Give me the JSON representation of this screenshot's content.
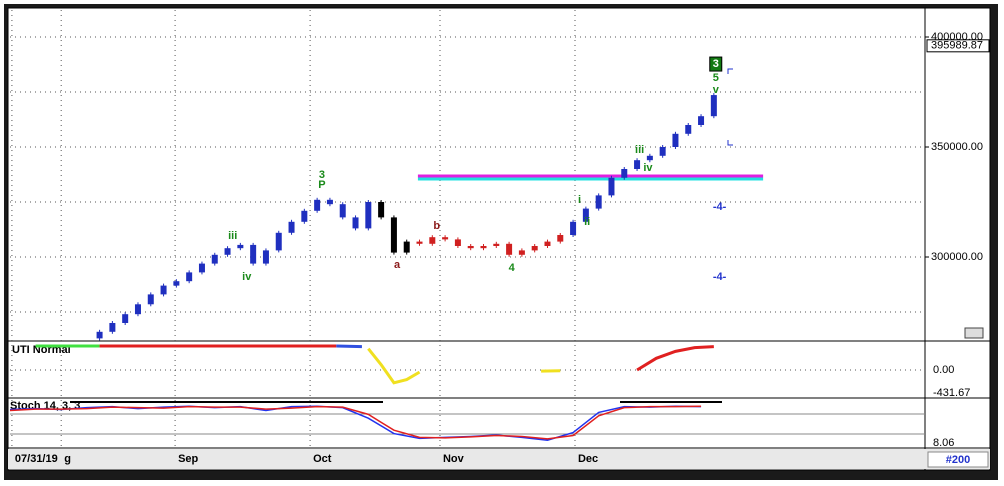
{
  "chart_data": [
    {
      "type": "candlestick",
      "x": [
        14,
        16,
        18,
        20,
        22,
        24,
        26,
        28,
        30,
        32,
        34,
        36,
        38,
        40,
        42,
        44,
        46,
        48,
        50,
        52,
        54,
        56,
        58,
        60,
        62,
        64,
        66,
        68,
        70,
        72,
        74,
        76,
        78,
        80,
        82,
        84,
        86,
        88,
        90,
        92,
        94,
        96,
        98,
        100,
        102,
        104,
        106,
        108,
        110
      ],
      "open": [
        263000,
        266000,
        270000,
        274000,
        278500,
        283000,
        287000,
        289000,
        293000,
        297000,
        301000,
        304000,
        305500,
        297000,
        303000,
        311000,
        316000,
        321000,
        326000,
        324000,
        318000,
        313000,
        325000,
        318000,
        302000,
        307000,
        306000,
        309000,
        308000,
        305000,
        304000,
        305000,
        306000,
        301000,
        303000,
        305000,
        307000,
        310000,
        316000,
        322000,
        328000,
        336000,
        340000,
        344000,
        346000,
        350000,
        356000,
        360000,
        364000
      ],
      "close": [
        266000,
        270000,
        274000,
        278500,
        283000,
        287000,
        289000,
        293000,
        297000,
        301000,
        304000,
        305500,
        297000,
        303000,
        311000,
        316000,
        321000,
        326000,
        324000,
        318000,
        313000,
        325000,
        318000,
        302000,
        307000,
        306000,
        309000,
        308000,
        305000,
        304000,
        305000,
        306000,
        301000,
        303000,
        305000,
        307000,
        310000,
        316000,
        322000,
        328000,
        336000,
        340000,
        344000,
        346000,
        350000,
        356000,
        360000,
        364000,
        373600
      ],
      "colors": [
        "#1f2fbf",
        "#1f2fbf",
        "#1f2fbf",
        "#1f2fbf",
        "#1f2fbf",
        "#1f2fbf",
        "#1f2fbf",
        "#1f2fbf",
        "#1f2fbf",
        "#1f2fbf",
        "#1f2fbf",
        "#1f2fbf",
        "#1f2fbf",
        "#1f2fbf",
        "#1f2fbf",
        "#1f2fbf",
        "#1f2fbf",
        "#1f2fbf",
        "#1f2fbf",
        "#1f2fbf",
        "#1f2fbf",
        "#1f2fbf",
        "#000000",
        "#000000",
        "#000000",
        "#d02020",
        "#d02020",
        "#d02020",
        "#d02020",
        "#d02020",
        "#d02020",
        "#d02020",
        "#d02020",
        "#d02020",
        "#d02020",
        "#d02020",
        "#d02020",
        "#1f2fbf",
        "#1f2fbf",
        "#1f2fbf",
        "#1f2fbf",
        "#1f2fbf",
        "#1f2fbf",
        "#1f2fbf",
        "#1f2fbf",
        "#1f2fbf",
        "#1f2fbf",
        "#1f2fbf",
        "#1f2fbf"
      ],
      "xlim": [
        0,
        143
      ],
      "xticks": [
        {
          "value": 0.3,
          "label": "07/31/19"
        },
        {
          "value": 8,
          "label": "g"
        },
        {
          "value": 25.8,
          "label": "Sep"
        },
        {
          "value": 46.9,
          "label": "Oct"
        },
        {
          "value": 67.2,
          "label": "Nov"
        },
        {
          "value": 88.3,
          "label": "Dec"
        }
      ],
      "ylim": [
        262270,
        412270
      ],
      "yticks": [
        {
          "value": 300000,
          "label": "300000.00"
        },
        {
          "value": 350000,
          "label": "350000.00"
        },
        {
          "value": 400000,
          "label": "400000.00"
        }
      ],
      "minor_yticks": [
        275000,
        325000,
        375000
      ],
      "last_price": {
        "value": 395989.87,
        "label": "395989.87"
      },
      "levels": [
        {
          "value": 336800,
          "color": "#e020e0"
        },
        {
          "value": 335450,
          "color": "#20e0e0"
        }
      ],
      "level_x": [
        63.75,
        117.7
      ],
      "annotations": [
        {
          "text": "3",
          "x": 48.75,
          "y": 337300,
          "color": "#1a8a1a"
        },
        {
          "text": "P",
          "x": 48.75,
          "y": 332700,
          "color": "#1a8a1a"
        },
        {
          "text": "iii",
          "x": 34.8,
          "y": 309500,
          "color": "#1a8a1a"
        },
        {
          "text": "iv",
          "x": 37,
          "y": 290900,
          "color": "#1a8a1a"
        },
        {
          "text": "a",
          "x": 60.5,
          "y": 296400,
          "color": "#8b1a1a"
        },
        {
          "text": "b",
          "x": 66.7,
          "y": 314100,
          "color": "#8b1a1a"
        },
        {
          "text": "4",
          "x": 78.4,
          "y": 295000,
          "color": "#1a8a1a"
        },
        {
          "text": "i",
          "x": 89,
          "y": 325900,
          "color": "#1a8a1a"
        },
        {
          "text": "ii",
          "x": 90.2,
          "y": 315900,
          "color": "#1a8a1a"
        },
        {
          "text": "iii",
          "x": 98.4,
          "y": 348600,
          "color": "#1a8a1a"
        },
        {
          "text": "iv",
          "x": 99.7,
          "y": 340500,
          "color": "#1a8a1a"
        },
        {
          "text": "5",
          "x": 110.3,
          "y": 381400,
          "color": "#1a8a1a"
        },
        {
          "text": "v",
          "x": 110.3,
          "y": 375900,
          "color": "#1a8a1a"
        },
        {
          "text": "3",
          "x": 110.3,
          "y": 387700,
          "color": "#ffffff",
          "boxed": true
        },
        {
          "text": "-4-",
          "x": 110.9,
          "y": 322700,
          "color": "#2233cc"
        },
        {
          "text": "-4-",
          "x": 110.9,
          "y": 290900,
          "color": "#2233cc"
        }
      ]
    },
    {
      "type": "segments",
      "title": "UTI Normal",
      "xlim": [
        0,
        143
      ],
      "ylim": [
        -507,
        507
      ],
      "yticks": [
        {
          "value": 0,
          "label": "0.00"
        }
      ],
      "value_label": {
        "value": -431.67,
        "label": "-431.67"
      },
      "segments": [
        {
          "color": "#40e040",
          "x": [
            4,
            14
          ],
          "values": [
            450,
            450
          ]
        },
        {
          "color": "#e02020",
          "x": [
            14,
            51
          ],
          "values": [
            450,
            450
          ]
        },
        {
          "color": "#3050e0",
          "x": [
            51,
            55
          ],
          "values": [
            450,
            440
          ]
        },
        {
          "color": "#f0e020",
          "x": [
            56,
            58,
            60,
            62,
            64
          ],
          "values": [
            400,
            100,
            -240,
            -180,
            -40
          ]
        },
        {
          "color": "#f0e020",
          "x": [
            83,
            86
          ],
          "values": [
            -20,
            -15
          ]
        },
        {
          "color": "#e02020",
          "x": [
            98,
            101,
            104,
            107,
            110
          ],
          "values": [
            0,
            220,
            350,
            420,
            440
          ]
        }
      ]
    },
    {
      "type": "line",
      "title": "Stoch 14, 3, 3",
      "xlim": [
        0,
        143
      ],
      "ylim": [
        0,
        100
      ],
      "value_label": {
        "value": 8.06,
        "label": "8.06"
      },
      "x": [
        0,
        4,
        8,
        12,
        16,
        20,
        24,
        28,
        32,
        36,
        40,
        44,
        48,
        52,
        56,
        60,
        64,
        68,
        72,
        76,
        80,
        84,
        88,
        92,
        96,
        100,
        104,
        108
      ],
      "series": [
        {
          "color": "#2233ee",
          "values": [
            78,
            80,
            78,
            82,
            84,
            80,
            83,
            85,
            82,
            84,
            76,
            84,
            85,
            82,
            60,
            28,
            18,
            20,
            22,
            25,
            20,
            14,
            30,
            72,
            84,
            83,
            85,
            84
          ]
        },
        {
          "color": "#e02020",
          "values": [
            76,
            79,
            79,
            80,
            83,
            82,
            81,
            84,
            83,
            83,
            79,
            81,
            84,
            83,
            68,
            35,
            20,
            19,
            21,
            24,
            22,
            17,
            24,
            65,
            82,
            84,
            84,
            85
          ]
        }
      ]
    }
  ],
  "status": "#200"
}
